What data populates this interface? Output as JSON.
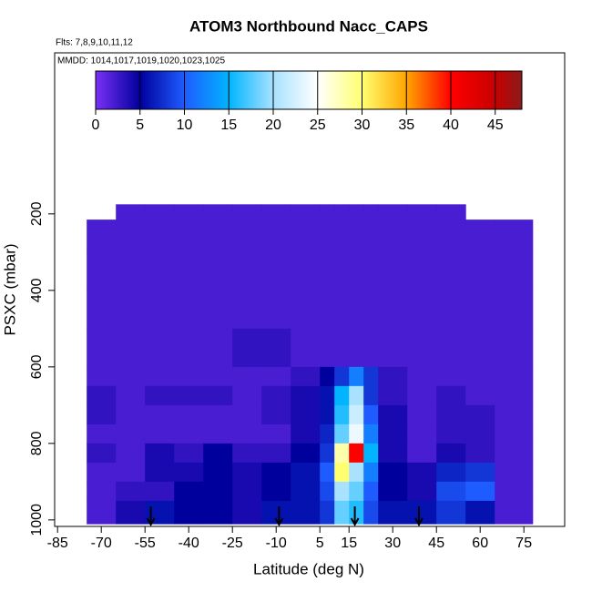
{
  "chart_data": {
    "type": "heatmap",
    "title": "ATOM3 Northbound Nacc_CAPS",
    "subtitle": "Flts: 7,8,9,10,11,12",
    "annotation": "MMDD: 1014,1017,1019,1020,1023,1025",
    "x_label": "Latitude (deg N)",
    "y_label": "PSXC (mbar)",
    "xlim": [
      -86,
      89
    ],
    "ylim": [
      1017,
      -221
    ],
    "xticks": [
      -85,
      -70,
      -55,
      -40,
      -25,
      -10,
      5,
      15,
      30,
      45,
      60,
      75
    ],
    "yticks": [
      200,
      400,
      600,
      800,
      1000
    ],
    "x_edges": [
      -75,
      -65,
      -55,
      -45,
      -35,
      -25,
      -15,
      -5,
      5,
      10,
      15,
      20,
      25,
      35,
      45,
      55,
      65,
      78
    ],
    "y_edges": [
      175,
      215,
      300,
      400,
      500,
      600,
      650,
      700,
      750,
      800,
      850,
      900,
      950,
      1010
    ],
    "values": [
      [
        null,
        2,
        2,
        2,
        2,
        2,
        2,
        2,
        2,
        2,
        2,
        2,
        2,
        2,
        2,
        null,
        null
      ],
      [
        2,
        2,
        2,
        2,
        2,
        2,
        2,
        2,
        2,
        2,
        2,
        2,
        2,
        2,
        2,
        2,
        2
      ],
      [
        2,
        2,
        2,
        2,
        2,
        2,
        2,
        2,
        2,
        2,
        2,
        2,
        2,
        2,
        2,
        2,
        2
      ],
      [
        2,
        2,
        2,
        2,
        2,
        2,
        2,
        2,
        2,
        2,
        2,
        2,
        2,
        2,
        2,
        2,
        2
      ],
      [
        2,
        2,
        2,
        2,
        2,
        3,
        3,
        2,
        2,
        2,
        2,
        2,
        2,
        2,
        2,
        2,
        2
      ],
      [
        2,
        2,
        2,
        2,
        2,
        2,
        2,
        3,
        5,
        8,
        12,
        8,
        3,
        2,
        2,
        2,
        2
      ],
      [
        3,
        2,
        3,
        3,
        3,
        2,
        3,
        4,
        6,
        15,
        20,
        8,
        3,
        2,
        3,
        2,
        2
      ],
      [
        3,
        2,
        2,
        2,
        2,
        2,
        3,
        4,
        6,
        16,
        22,
        10,
        4,
        2,
        3,
        3,
        2
      ],
      [
        2,
        2,
        2,
        2,
        2,
        2,
        2,
        4,
        7,
        18,
        24,
        12,
        4,
        2,
        3,
        3,
        2
      ],
      [
        3,
        2,
        4,
        3,
        5,
        3,
        3,
        5,
        8,
        28,
        40,
        15,
        4,
        2,
        4,
        3,
        2
      ],
      [
        2,
        2,
        4,
        4,
        5,
        4,
        5,
        6,
        10,
        30,
        20,
        12,
        5,
        4,
        7,
        8,
        2
      ],
      [
        2,
        3,
        3,
        5,
        5,
        4,
        5,
        6,
        9,
        20,
        18,
        10,
        5,
        4,
        9,
        10,
        2
      ],
      [
        2,
        4,
        6,
        5,
        5,
        4,
        6,
        6,
        8,
        18,
        16,
        9,
        6,
        6,
        8,
        6,
        2
      ]
    ],
    "colorbar_lim": [
      0,
      48
    ],
    "colorbar_ticks": [
      0,
      5,
      10,
      15,
      20,
      25,
      30,
      35,
      40,
      45
    ],
    "colorscale": [
      [
        0,
        "#7a30f5"
      ],
      [
        5,
        "#00009c"
      ],
      [
        10,
        "#1f5cff"
      ],
      [
        15,
        "#00b4ff"
      ],
      [
        20,
        "#a8e2ff"
      ],
      [
        25,
        "#ffffff"
      ],
      [
        30,
        "#ffff70"
      ],
      [
        35,
        "#ffa500"
      ],
      [
        40,
        "#ff0000"
      ],
      [
        45,
        "#c80000"
      ],
      [
        48,
        "#8b1a1a"
      ]
    ],
    "arrows": [
      -53,
      -9,
      17,
      39
    ]
  }
}
